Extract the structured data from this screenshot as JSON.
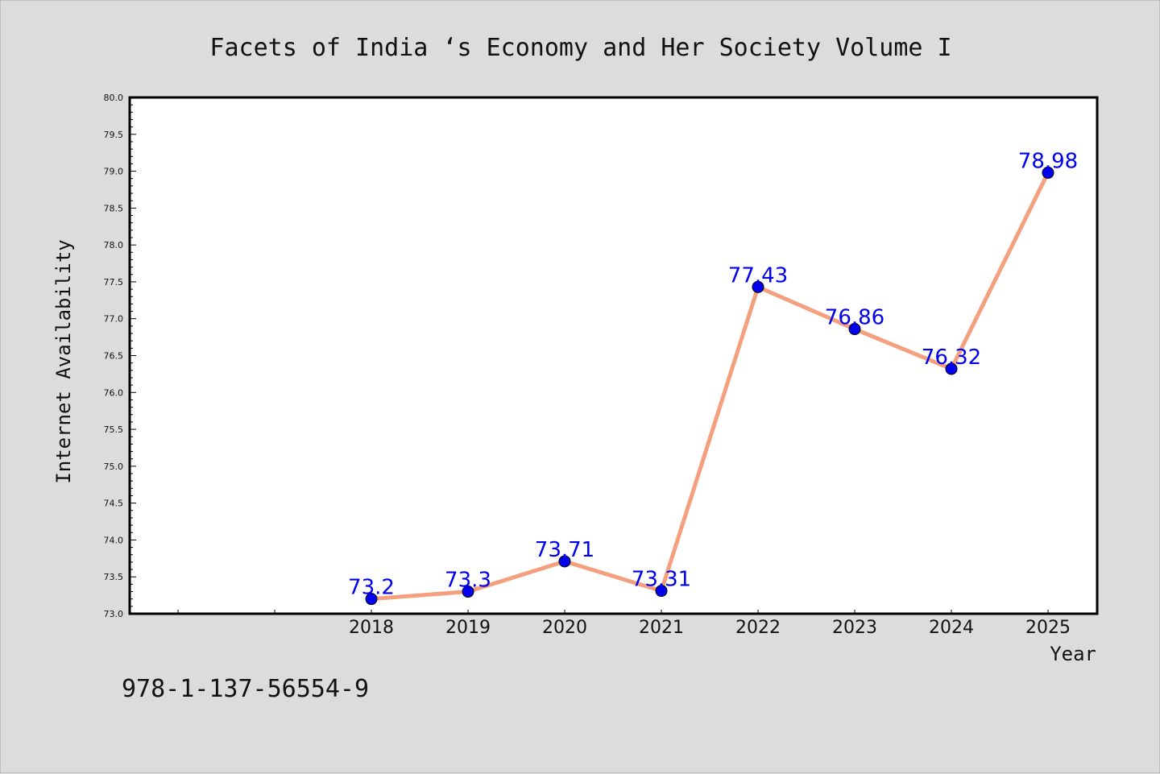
{
  "footer": {
    "isbn": "978-1-137-56554-9"
  },
  "chart_data": {
    "type": "line",
    "title": "Facets of India ‘s Economy and Her Society Volume I",
    "xlabel": "Year",
    "ylabel": "Internet Availability",
    "x": [
      "2018",
      "2019",
      "2020",
      "2021",
      "2022",
      "2023",
      "2024",
      "2025"
    ],
    "series": [
      {
        "values": [
          73.2,
          73.3,
          73.71,
          73.31,
          77.43,
          76.86,
          76.32,
          78.98
        ]
      }
    ],
    "data_labels": [
      "73.2",
      "73.3",
      "73.71",
      "73.31",
      "77.43",
      "76.86",
      "76.32",
      "78.98"
    ],
    "ylim": [
      73.0,
      80.0
    ],
    "yticks": [
      "73.0",
      "73.5",
      "74.0",
      "74.5",
      "75.0",
      "75.5",
      "76.0",
      "76.5",
      "77.0",
      "77.5",
      "78.0",
      "78.5",
      "79.0",
      "79.5",
      "80.0"
    ],
    "grid": false,
    "legend": "none",
    "colors": {
      "line": "#f4a07f",
      "marker": "#0000ee",
      "label": "#0000ee",
      "plot_background": "#ffffff",
      "page_background": "#dcdcdc"
    }
  }
}
